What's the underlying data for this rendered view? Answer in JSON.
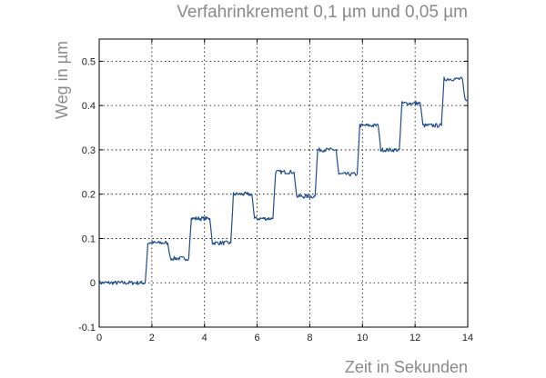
{
  "chart_data": {
    "type": "line",
    "title": "Verfahrinkrement 0,1 µm und 0,05 µm",
    "xlabel": "Zeit in Sekunden",
    "ylabel": "Weg in µm",
    "xlim": [
      0,
      14
    ],
    "ylim": [
      -0.1,
      0.55
    ],
    "xticks": [
      0,
      2,
      4,
      6,
      8,
      10,
      12,
      14
    ],
    "xtick_labels": [
      "0",
      "2",
      "4",
      "6",
      "8",
      "10",
      "12",
      "14"
    ],
    "yticks": [
      -0.1,
      0,
      0.1,
      0.2,
      0.3,
      0.4,
      0.5
    ],
    "ytick_labels": [
      "-0.1",
      "0",
      "0.1",
      "0.2",
      "0.3",
      "0.4",
      "0.5"
    ],
    "grid": true,
    "line_color": "#1f4e8c",
    "series": [
      {
        "x": [
          0,
          1.75,
          1.85,
          2.6,
          2.7,
          3.4,
          3.5,
          4.2,
          4.3,
          5.0,
          5.1,
          5.8,
          5.9,
          6.6,
          6.7,
          7.4,
          7.5,
          8.2,
          8.3,
          9.0,
          9.1,
          9.8,
          9.9,
          10.6,
          10.7,
          11.4,
          11.5,
          12.2,
          12.3,
          13.0,
          13.1,
          13.8,
          13.9,
          14.0
        ],
        "y": [
          0.0,
          0.0,
          0.09,
          0.09,
          0.055,
          0.055,
          0.145,
          0.145,
          0.09,
          0.09,
          0.2,
          0.2,
          0.145,
          0.145,
          0.25,
          0.25,
          0.195,
          0.195,
          0.3,
          0.3,
          0.245,
          0.245,
          0.355,
          0.355,
          0.3,
          0.3,
          0.405,
          0.405,
          0.355,
          0.355,
          0.46,
          0.46,
          0.41,
          0.41
        ]
      }
    ]
  }
}
